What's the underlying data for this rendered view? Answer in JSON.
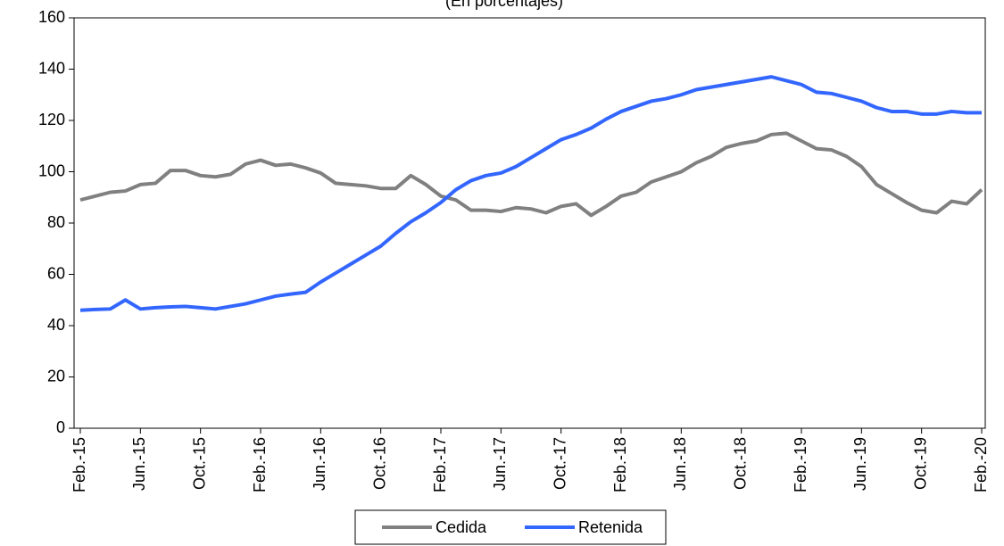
{
  "chart_data": {
    "type": "line",
    "subtitle": "(En porcentajes)",
    "categories": [
      "Feb.-15",
      null,
      null,
      null,
      "Jun.-15",
      null,
      null,
      null,
      "Oct.-15",
      null,
      null,
      null,
      "Feb.-16",
      null,
      null,
      null,
      "Jun.-16",
      null,
      null,
      null,
      "Oct.-16",
      null,
      null,
      null,
      "Feb.-17",
      null,
      null,
      null,
      "Jun.-17",
      null,
      null,
      null,
      "Oct.-17",
      null,
      null,
      null,
      "Feb.-18",
      null,
      null,
      null,
      "Jun.-18",
      null,
      null,
      null,
      "Oct.-18",
      null,
      null,
      null,
      "Feb.-19",
      null,
      null,
      null,
      "Jun.-19",
      null,
      null,
      null,
      "Oct.-19",
      null,
      null,
      null,
      "Feb.-20"
    ],
    "series": [
      {
        "name": "Cedida",
        "color": "#808080",
        "values": [
          89,
          90.5,
          92,
          92.5,
          95,
          95.5,
          100.5,
          100.5,
          98.5,
          98,
          99,
          103,
          104.5,
          102.5,
          103,
          101.5,
          99.5,
          95.5,
          95,
          94.5,
          93.5,
          93.5,
          98.5,
          95,
          90.5,
          89,
          85,
          85,
          84.5,
          86,
          85.5,
          84,
          86.5,
          87.5,
          83,
          86.5,
          90.5,
          92,
          96,
          98,
          100,
          103.5,
          106,
          109.5,
          111,
          112,
          114.5,
          115,
          112,
          109,
          108.5,
          106,
          102,
          95,
          91.5,
          88,
          85,
          84,
          88.5,
          87.5,
          93
        ]
      },
      {
        "name": "Retenida",
        "color": "#3366ff",
        "values": [
          46,
          46.3,
          46.5,
          50,
          46.5,
          47,
          47.3,
          47.5,
          47,
          46.5,
          47.5,
          48.5,
          50,
          51.5,
          52.3,
          53,
          57,
          60.5,
          64,
          67.5,
          71,
          76,
          80.5,
          84,
          88,
          93,
          96.5,
          98.5,
          99.5,
          102,
          105.5,
          109,
          112.5,
          114.5,
          117,
          120.5,
          123.5,
          125.5,
          127.5,
          128.5,
          130,
          132,
          133,
          134,
          135,
          136,
          137,
          135.5,
          134,
          131,
          130.5,
          129,
          127.5,
          125,
          123.5,
          123.5,
          122.5,
          122.5,
          123.5,
          123,
          123
        ]
      }
    ],
    "ylim": [
      0,
      160
    ],
    "yticks": [
      0,
      20,
      40,
      60,
      80,
      100,
      120,
      140,
      160
    ],
    "grid": false,
    "legend": "bottom"
  }
}
